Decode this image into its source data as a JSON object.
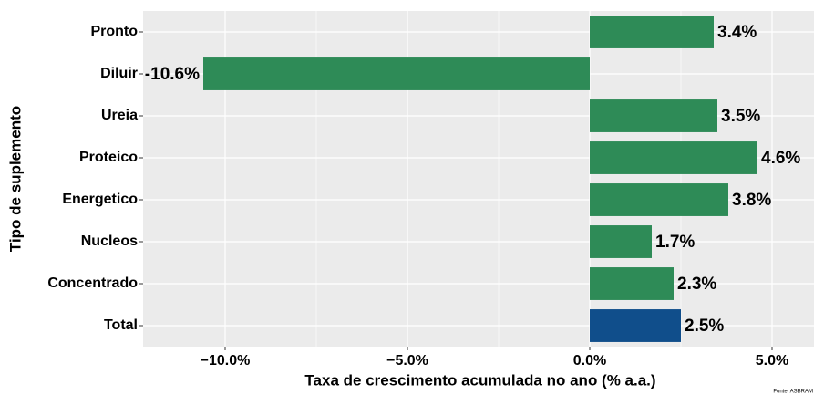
{
  "chart_data": {
    "type": "bar",
    "orientation": "horizontal",
    "x_label": "Taxa de crescimento acumulada no ano (% a.a.)",
    "y_label": "Tipo de suplemento",
    "caption": "Fonte: ASBRAM",
    "categories": [
      "Pronto",
      "Diluir",
      "Ureia",
      "Proteico",
      "Energetico",
      "Nucleos",
      "Concentrado",
      "Total"
    ],
    "values": [
      3.4,
      -10.6,
      3.5,
      4.6,
      3.8,
      1.7,
      2.3,
      2.5
    ],
    "value_labels": [
      "3.4%",
      "-10.6%",
      "3.5%",
      "4.6%",
      "3.8%",
      "1.7%",
      "2.3%",
      "2.5%"
    ],
    "colors": [
      "#2e8b57",
      "#2e8b57",
      "#2e8b57",
      "#2e8b57",
      "#2e8b57",
      "#2e8b57",
      "#2e8b57",
      "#104e8b"
    ],
    "xlim": [
      -12.25,
      6.15
    ],
    "xticks": [
      {
        "value": -10,
        "label": "−10.0%"
      },
      {
        "value": -5,
        "label": "−5.0%"
      },
      {
        "value": 0,
        "label": "0.0%"
      },
      {
        "value": 5,
        "label": "5.0%"
      }
    ],
    "grid": true
  }
}
